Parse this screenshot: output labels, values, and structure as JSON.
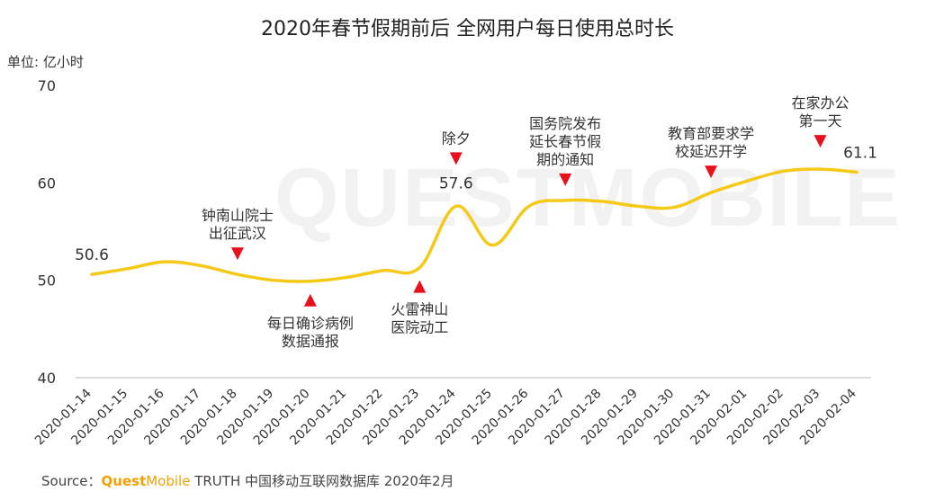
{
  "title": "2020年春节假期前后 全网用户每日使用总时长",
  "unit_label": "单位: 亿小时",
  "watermark": "QUESTMOBILE",
  "source": {
    "prefix": "Source：",
    "brand_quest": "Quest",
    "brand_mobile": "Mobile",
    "suffix": " TRUTH 中国移动互联网数据库 2020年2月"
  },
  "colors": {
    "line": "#f5c917",
    "marker": "#e8101b",
    "axis": "#d0d0d0"
  },
  "chart_data": {
    "type": "line",
    "title": "2020年春节假期前后 全网用户每日使用总时长",
    "ylabel": "单位: 亿小时",
    "ylim": [
      40,
      70
    ],
    "yticks": [
      40,
      50,
      60,
      70
    ],
    "grid": false,
    "categories": [
      "2020-01-14",
      "2020-01-15",
      "2020-01-16",
      "2020-01-17",
      "2020-01-18",
      "2020-01-19",
      "2020-01-20",
      "2020-01-21",
      "2020-01-22",
      "2020-01-23",
      "2020-01-24",
      "2020-01-25",
      "2020-01-26",
      "2020-01-27",
      "2020-01-28",
      "2020-01-29",
      "2020-01-30",
      "2020-01-31",
      "2020-02-01",
      "2020-02-02",
      "2020-02-03",
      "2020-02-04"
    ],
    "values": [
      50.6,
      51.2,
      51.9,
      51.5,
      50.6,
      50.0,
      49.9,
      50.3,
      51.0,
      51.3,
      57.6,
      53.6,
      57.6,
      58.2,
      58.1,
      57.6,
      57.5,
      59.0,
      60.2,
      61.2,
      61.4,
      61.1
    ],
    "value_labels": [
      {
        "index": 0,
        "text": "50.6"
      },
      {
        "index": 10,
        "text": "57.6"
      },
      {
        "index": 21,
        "text": "61.1"
      }
    ],
    "annotations": [
      {
        "index": 4,
        "lines": [
          "钟南山院士",
          "出征武汉"
        ],
        "position": "above"
      },
      {
        "index": 6,
        "lines": [
          "每日确诊病例",
          "数据通报"
        ],
        "position": "below"
      },
      {
        "index": 9,
        "lines": [
          "火雷神山",
          "医院动工"
        ],
        "position": "below"
      },
      {
        "index": 10,
        "lines": [
          "除夕"
        ],
        "position": "above"
      },
      {
        "index": 13,
        "lines": [
          "国务院发布",
          "延长春节假",
          "期的通知"
        ],
        "position": "above"
      },
      {
        "index": 17,
        "lines": [
          "教育部要求学",
          "校延迟开学"
        ],
        "position": "above"
      },
      {
        "index": 20,
        "lines": [
          "在家办公",
          "第一天"
        ],
        "position": "above"
      }
    ]
  }
}
